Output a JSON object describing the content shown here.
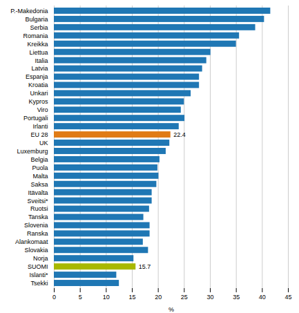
{
  "chart_data": {
    "type": "bar",
    "orientation": "horizontal",
    "categories": [
      "P.-Makedonia",
      "Bulgaria",
      "Serbia",
      "Romania",
      "Kreikka",
      "Liettua",
      "Italia",
      "Latvia",
      "Espanja",
      "Kroatia",
      "Unkari",
      "Kypros",
      "Viro",
      "Portugali",
      "Irlanti",
      "EU 28",
      "UK",
      "Luxemburg",
      "Belgia",
      "Puola",
      "Malta",
      "Saksa",
      "Itävalta",
      "Sveitsi*",
      "Ruotsi",
      "Tanska",
      "Slovenia",
      "Ranska",
      "Alankomaat",
      "Slovakia",
      "Norja",
      "SUOMI",
      "Islanti*",
      "Tsekki"
    ],
    "values": [
      41.6,
      40.4,
      38.7,
      35.6,
      35.0,
      30.1,
      29.3,
      28.5,
      27.9,
      27.9,
      26.3,
      25.0,
      24.4,
      25.1,
      24.0,
      22.4,
      22.2,
      21.5,
      20.3,
      19.9,
      20.1,
      19.7,
      18.8,
      18.8,
      18.3,
      17.2,
      18.4,
      18.4,
      17.1,
      18.1,
      15.3,
      15.7,
      12.0,
      12.5
    ],
    "colors": [
      "#1f77b4",
      "#1f77b4",
      "#1f77b4",
      "#1f77b4",
      "#1f77b4",
      "#1f77b4",
      "#1f77b4",
      "#1f77b4",
      "#1f77b4",
      "#1f77b4",
      "#1f77b4",
      "#1f77b4",
      "#1f77b4",
      "#1f77b4",
      "#1f77b4",
      "#e07b16",
      "#1f77b4",
      "#1f77b4",
      "#1f77b4",
      "#1f77b4",
      "#1f77b4",
      "#1f77b4",
      "#1f77b4",
      "#1f77b4",
      "#1f77b4",
      "#1f77b4",
      "#1f77b4",
      "#1f77b4",
      "#1f77b4",
      "#1f77b4",
      "#1f77b4",
      "#a8b800",
      "#1f77b4",
      "#1f77b4"
    ],
    "annotations": [
      {
        "category": "EU 28",
        "text": "22.4"
      },
      {
        "category": "SUOMI",
        "text": "15.7"
      }
    ],
    "xlabel": "%",
    "xlim": [
      0,
      45
    ],
    "xticks": [
      0,
      5,
      10,
      15,
      20,
      25,
      30,
      35,
      40,
      45
    ],
    "grid": true
  }
}
